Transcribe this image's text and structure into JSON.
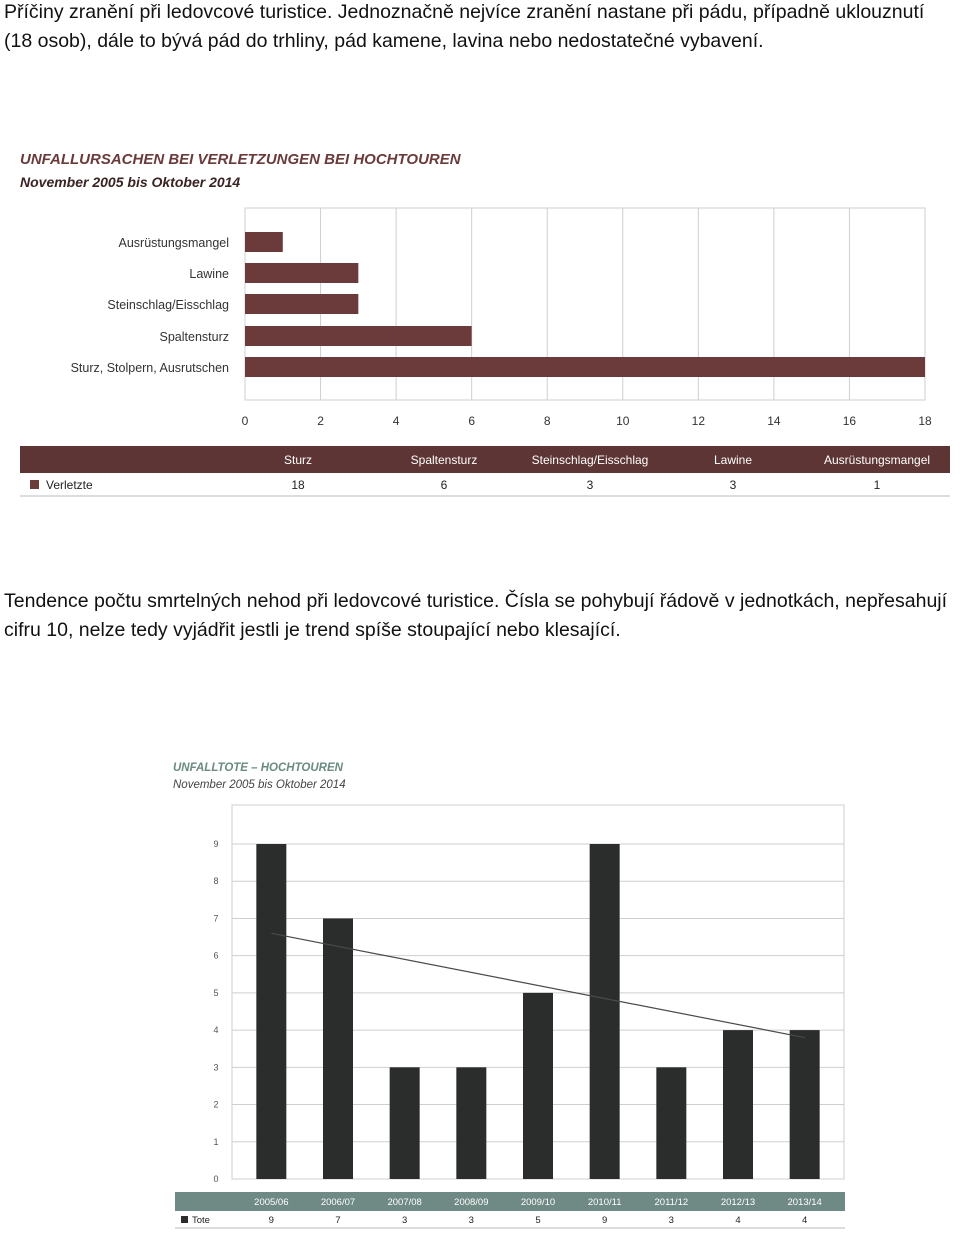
{
  "intro_text": "Příčiny zranění při ledovcové turistice. Jednoznačně nejvíce zranění nastane při pádu, případně uklouznutí (18 osob), dále to bývá pád do trhliny, pád kamene, lavina nebo nedostatečné vybavení.",
  "middle_text": "Tendence počtu smrtelných nehod při ledovcové turistice. Čísla se pohybují řádově v jednotkách, nepřesahují cifru 10, nelze tedy vyjádřit jestli je trend spíše stoupající nebo klesající.",
  "colors": {
    "bar1": "#6b3a3a",
    "band1": "#5e3535",
    "bar2": "#2a2d2c",
    "band2": "#6f8a84",
    "grid": "#cfcfcf",
    "trend": "#4a4a4a"
  },
  "chart_data": [
    {
      "type": "bar",
      "orientation": "horizontal",
      "title": "UNFALLURSACHEN BEI VERLETZUNGEN BEI HOCHTOUREN",
      "subtitle": "November 2005 bis Oktober 2014",
      "categories": [
        "Ausrüstungsmangel",
        "Lawine",
        "Steinschlag/Eisschlag",
        "Spaltensturz",
        "Sturz, Stolpern, Ausrutschen"
      ],
      "values": [
        1,
        3,
        3,
        6,
        18
      ],
      "xlim": [
        0,
        18
      ],
      "xticks": [
        0,
        2,
        4,
        6,
        8,
        10,
        12,
        14,
        16,
        18
      ],
      "grid": true,
      "table": {
        "headers": [
          "Sturz",
          "Spaltensturz",
          "Steinschlag/Eisschlag",
          "Lawine",
          "Ausrüstungsmangel"
        ],
        "series_label": "Verletzte",
        "values": [
          18,
          6,
          3,
          3,
          1
        ]
      }
    },
    {
      "type": "bar",
      "orientation": "vertical",
      "title": "UNFALLTOTE – HOCHTOUREN",
      "subtitle": "November 2005 bis Oktober 2014",
      "categories": [
        "2005/06",
        "2006/07",
        "2007/08",
        "2008/09",
        "2009/10",
        "2010/11",
        "2011/12",
        "2012/13",
        "2013/14"
      ],
      "values": [
        9,
        7,
        3,
        3,
        5,
        9,
        3,
        4,
        4
      ],
      "ylim": [
        0,
        9
      ],
      "yticks": [
        0,
        1,
        2,
        3,
        4,
        5,
        6,
        7,
        8,
        9
      ],
      "grid": true,
      "trendline": {
        "start": 6.6,
        "end": 3.8
      },
      "table": {
        "series_label": "Tote"
      }
    }
  ]
}
